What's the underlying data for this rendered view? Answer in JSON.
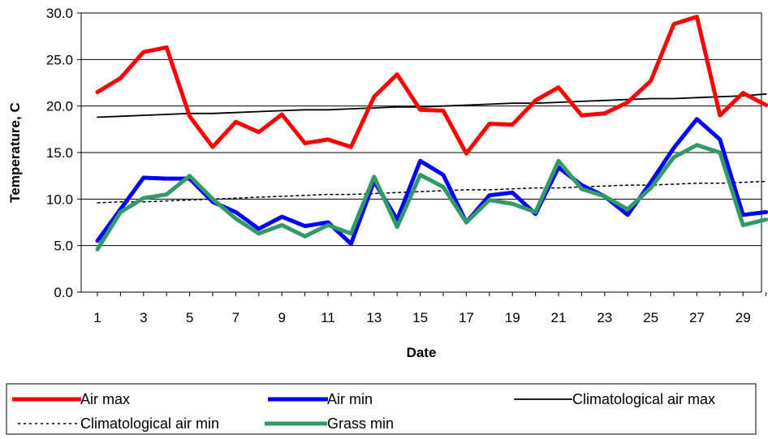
{
  "chart_data": {
    "type": "line",
    "xlabel": "Date",
    "ylabel": "Temperature, C",
    "ylim": [
      0,
      30
    ],
    "yticks": [
      "0.0",
      "5.0",
      "10.0",
      "15.0",
      "20.0",
      "25.0",
      "30.0"
    ],
    "xlim": [
      1,
      30
    ],
    "xticks": [
      "1",
      "3",
      "5",
      "7",
      "9",
      "11",
      "13",
      "15",
      "17",
      "19",
      "21",
      "23",
      "25",
      "27",
      "29"
    ],
    "grid": "horizontal",
    "legend_position": "bottom",
    "x": [
      1,
      2,
      3,
      4,
      5,
      6,
      7,
      8,
      9,
      10,
      11,
      12,
      13,
      14,
      15,
      16,
      17,
      18,
      19,
      20,
      21,
      22,
      23,
      24,
      25,
      26,
      27,
      28,
      29,
      30
    ],
    "series": [
      {
        "name": "Air max",
        "color": "#ff0000",
        "style": "thick",
        "values": [
          21.5,
          23.0,
          25.8,
          26.3,
          18.9,
          15.6,
          18.3,
          17.2,
          19.1,
          16.0,
          16.4,
          15.6,
          21.0,
          23.4,
          19.6,
          19.5,
          14.9,
          18.1,
          18.0,
          20.6,
          22.0,
          19.0,
          19.2,
          20.4,
          22.7,
          28.8,
          29.6,
          19.0,
          21.4,
          20.1
        ]
      },
      {
        "name": "Air min",
        "color": "#0000ff",
        "style": "thick",
        "values": [
          5.5,
          8.9,
          12.3,
          12.2,
          12.2,
          9.7,
          8.6,
          6.8,
          8.1,
          7.1,
          7.5,
          5.2,
          11.9,
          7.8,
          14.1,
          12.6,
          7.5,
          10.4,
          10.7,
          8.4,
          13.4,
          11.5,
          10.3,
          8.3,
          11.8,
          15.5,
          18.6,
          16.4,
          8.3,
          8.6
        ]
      },
      {
        "name": "Climatological air max",
        "color": "#000000",
        "style": "solid",
        "values": [
          18.8,
          18.9,
          19.0,
          19.1,
          19.2,
          19.2,
          19.3,
          19.4,
          19.5,
          19.6,
          19.6,
          19.7,
          19.8,
          19.9,
          19.9,
          20.0,
          20.1,
          20.2,
          20.3,
          20.3,
          20.4,
          20.5,
          20.6,
          20.7,
          20.8,
          20.8,
          20.9,
          21.0,
          21.1,
          21.3
        ]
      },
      {
        "name": "Climatological air min",
        "color": "#000000",
        "style": "dotted",
        "values": [
          9.6,
          9.7,
          9.7,
          9.8,
          9.9,
          10.0,
          10.1,
          10.2,
          10.3,
          10.4,
          10.5,
          10.5,
          10.6,
          10.7,
          10.8,
          10.9,
          11.0,
          11.0,
          11.1,
          11.2,
          11.2,
          11.3,
          11.4,
          11.5,
          11.5,
          11.6,
          11.7,
          11.7,
          11.8,
          11.9
        ]
      },
      {
        "name": "Grass min",
        "color": "#339966",
        "style": "thick",
        "values": [
          4.6,
          8.6,
          10.1,
          10.5,
          12.5,
          10.0,
          7.9,
          6.3,
          7.2,
          6.0,
          7.2,
          6.3,
          12.4,
          7.0,
          12.6,
          11.3,
          7.5,
          9.9,
          9.5,
          8.6,
          14.1,
          11.1,
          10.3,
          8.9,
          11.2,
          14.5,
          15.8,
          15.0,
          7.2,
          7.8
        ]
      }
    ]
  }
}
